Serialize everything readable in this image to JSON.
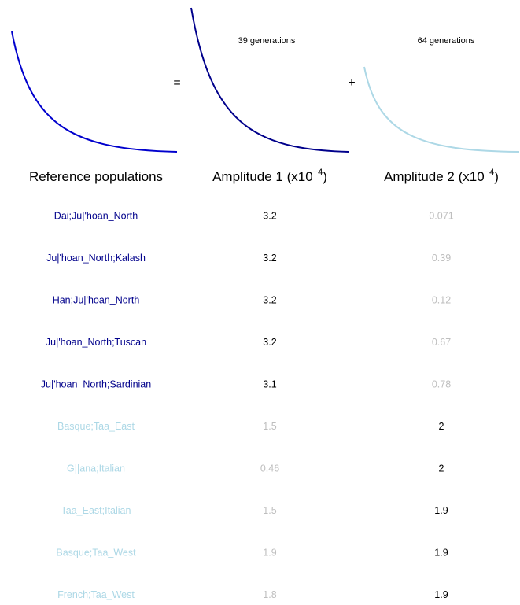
{
  "equation": {
    "equals": "=",
    "plus": "+",
    "component1": "39 generations",
    "component2": "64 generations"
  },
  "table": {
    "headers": [
      {
        "text": "Reference populations"
      },
      {
        "text": "Amplitude 1 (x10",
        "exponent": "−4",
        "close": ")"
      },
      {
        "text": "Amplitude 2 (x10",
        "exponent": "−4",
        "close": ")"
      }
    ],
    "rows": [
      {
        "cells": [
          "Dai;Ju|'hoan_North",
          "3.2",
          "0.071"
        ],
        "colors": [
          "#00008b",
          "#000000",
          "#bebebe"
        ]
      },
      {
        "cells": [
          "Ju|'hoan_North;Kalash",
          "3.2",
          "0.39"
        ],
        "colors": [
          "#00008b",
          "#000000",
          "#bebebe"
        ]
      },
      {
        "cells": [
          "Han;Ju|'hoan_North",
          "3.2",
          "0.12"
        ],
        "colors": [
          "#00008b",
          "#000000",
          "#bebebe"
        ]
      },
      {
        "cells": [
          "Ju|'hoan_North;Tuscan",
          "3.2",
          "0.67"
        ],
        "colors": [
          "#00008b",
          "#000000",
          "#bebebe"
        ]
      },
      {
        "cells": [
          "Ju|'hoan_North;Sardinian",
          "3.1",
          "0.78"
        ],
        "colors": [
          "#00008b",
          "#000000",
          "#bebebe"
        ]
      },
      {
        "cells": [
          "Basque;Taa_East",
          "1.5",
          "2"
        ],
        "colors": [
          "#add8e6",
          "#bebebe",
          "#000000"
        ]
      },
      {
        "cells": [
          "G||ana;Italian",
          "0.46",
          "2"
        ],
        "colors": [
          "#add8e6",
          "#bebebe",
          "#000000"
        ]
      },
      {
        "cells": [
          "Taa_East;Italian",
          "1.5",
          "1.9"
        ],
        "colors": [
          "#add8e6",
          "#bebebe",
          "#000000"
        ]
      },
      {
        "cells": [
          "Basque;Taa_West",
          "1.9",
          "1.9"
        ],
        "colors": [
          "#add8e6",
          "#bebebe",
          "#000000"
        ]
      },
      {
        "cells": [
          "French;Taa_West",
          "1.8",
          "1.9"
        ],
        "colors": [
          "#add8e6",
          "#bebebe",
          "#000000"
        ]
      }
    ]
  }
}
